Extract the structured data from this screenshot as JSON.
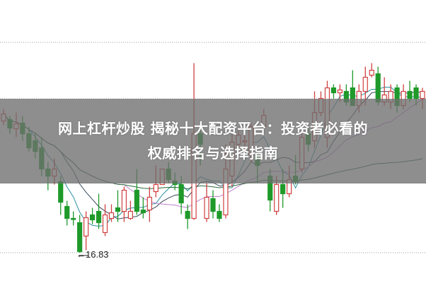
{
  "title": {
    "line1": "网上杠杆炒股 揭秘十大配资平台：投资者必看的",
    "line2": "权威排名与选择指南"
  },
  "chart_data": {
    "type": "candlestick",
    "title": "",
    "xlabel": "",
    "ylabel": "",
    "ylim": [
      16.8,
      24.0
    ],
    "grid": "dotted horizontal lines at top and bottom",
    "annotations": [
      {
        "text": "←16.83",
        "value": 16.83
      }
    ],
    "colors": {
      "up": "#d04040",
      "down": "#1f9a2a",
      "ma": [
        "#2a8fa0",
        "#3a4a5a",
        "#c080d0",
        "#2a6a3a"
      ]
    },
    "moving_average_periods": [
      5,
      10,
      20,
      60
    ],
    "candles_ohlc": [
      [
        20.56,
        20.9,
        20.44,
        20.76
      ],
      [
        20.6,
        20.7,
        20.2,
        20.36
      ],
      [
        20.34,
        20.8,
        20.1,
        20.48
      ],
      [
        20.5,
        20.7,
        20.0,
        20.2
      ],
      [
        20.2,
        20.4,
        19.7,
        19.8
      ],
      [
        20.0,
        20.2,
        19.5,
        19.7
      ],
      [
        19.8,
        20.1,
        19.0,
        19.2
      ],
      [
        19.2,
        19.4,
        18.6,
        19.0
      ],
      [
        19.0,
        19.5,
        18.76,
        19.2
      ],
      [
        18.84,
        19.0,
        17.9,
        18.26
      ],
      [
        18.14,
        18.3,
        17.6,
        17.8
      ],
      [
        17.8,
        18.0,
        17.6,
        17.78
      ],
      [
        17.68,
        17.9,
        16.83,
        16.86
      ],
      [
        17.3,
        18.0,
        16.9,
        17.82
      ],
      [
        17.9,
        18.1,
        17.64,
        17.76
      ],
      [
        18.0,
        18.5,
        17.5,
        17.68
      ],
      [
        17.4,
        18.2,
        17.3,
        17.9
      ],
      [
        17.8,
        18.2,
        17.7,
        17.96
      ],
      [
        18.1,
        18.6,
        17.7,
        18.0
      ],
      [
        18.0,
        18.7,
        17.7,
        18.6
      ],
      [
        17.8,
        18.3,
        17.76,
        18.0
      ],
      [
        18.6,
        19.2,
        17.9,
        18.0
      ],
      [
        18.04,
        18.4,
        17.8,
        17.96
      ],
      [
        18.04,
        18.7,
        17.7,
        18.4
      ],
      [
        18.56,
        19.3,
        18.4,
        18.76
      ],
      [
        18.76,
        19.2,
        18.84,
        19.2
      ],
      [
        19.2,
        19.4,
        18.8,
        18.9
      ],
      [
        18.86,
        19.1,
        18.6,
        18.76
      ],
      [
        18.76,
        19.0,
        17.92,
        18.24
      ],
      [
        18.0,
        18.2,
        17.5,
        17.8
      ],
      [
        17.8,
        22.2,
        17.76,
        20.2
      ],
      [
        20.2,
        20.4,
        19.3,
        19.9
      ],
      [
        17.8,
        18.8,
        17.7,
        18.4
      ],
      [
        18.36,
        18.6,
        17.8,
        18.0
      ],
      [
        18.0,
        18.2,
        17.7,
        17.8
      ],
      [
        17.9,
        19.9,
        17.8,
        19.2
      ],
      [
        19.0,
        20.2,
        18.7,
        19.96
      ],
      [
        19.9,
        20.3,
        19.8,
        20.16
      ],
      [
        20.0,
        20.4,
        19.7,
        20.0
      ],
      [
        19.6,
        20.5,
        19.4,
        20.4
      ],
      [
        19.6,
        19.8,
        18.8,
        19.3
      ],
      [
        20.4,
        20.9,
        20.2,
        20.72
      ],
      [
        19.0,
        19.2,
        18.0,
        18.32
      ],
      [
        18.0,
        19.0,
        17.9,
        18.76
      ],
      [
        18.76,
        19.2,
        18.1,
        18.5
      ],
      [
        18.5,
        19.3,
        18.4,
        18.9
      ],
      [
        19.0,
        19.6,
        18.76,
        18.84
      ],
      [
        19.2,
        20.2,
        19.1,
        20.1
      ],
      [
        20.2,
        20.4,
        19.7,
        19.9
      ],
      [
        20.0,
        21.4,
        19.8,
        20.8
      ],
      [
        20.8,
        21.4,
        20.7,
        21.2
      ],
      [
        20.1,
        21.7,
        19.8,
        21.5
      ],
      [
        21.5,
        21.6,
        21.2,
        21.36
      ],
      [
        21.36,
        21.6,
        21.1,
        21.44
      ],
      [
        21.4,
        21.6,
        21.0,
        21.1
      ],
      [
        21.5,
        22.0,
        21.0,
        21.0
      ],
      [
        21.0,
        21.6,
        20.8,
        21.4
      ],
      [
        21.4,
        22.1,
        21.0,
        21.8
      ],
      [
        21.86,
        22.2,
        21.8,
        22.0
      ],
      [
        21.9,
        22.1,
        21.0,
        21.1
      ],
      [
        21.1,
        21.8,
        21.0,
        21.3
      ],
      [
        21.1,
        21.6,
        20.9,
        21.4
      ],
      [
        21.5,
        21.6,
        20.8,
        21.0
      ],
      [
        21.0,
        21.6,
        20.9,
        21.4
      ],
      [
        21.4,
        21.7,
        21.1,
        21.2
      ],
      [
        21.5,
        21.6,
        21.0,
        21.2
      ],
      [
        21.2,
        21.5,
        20.9,
        21.4
      ]
    ]
  }
}
